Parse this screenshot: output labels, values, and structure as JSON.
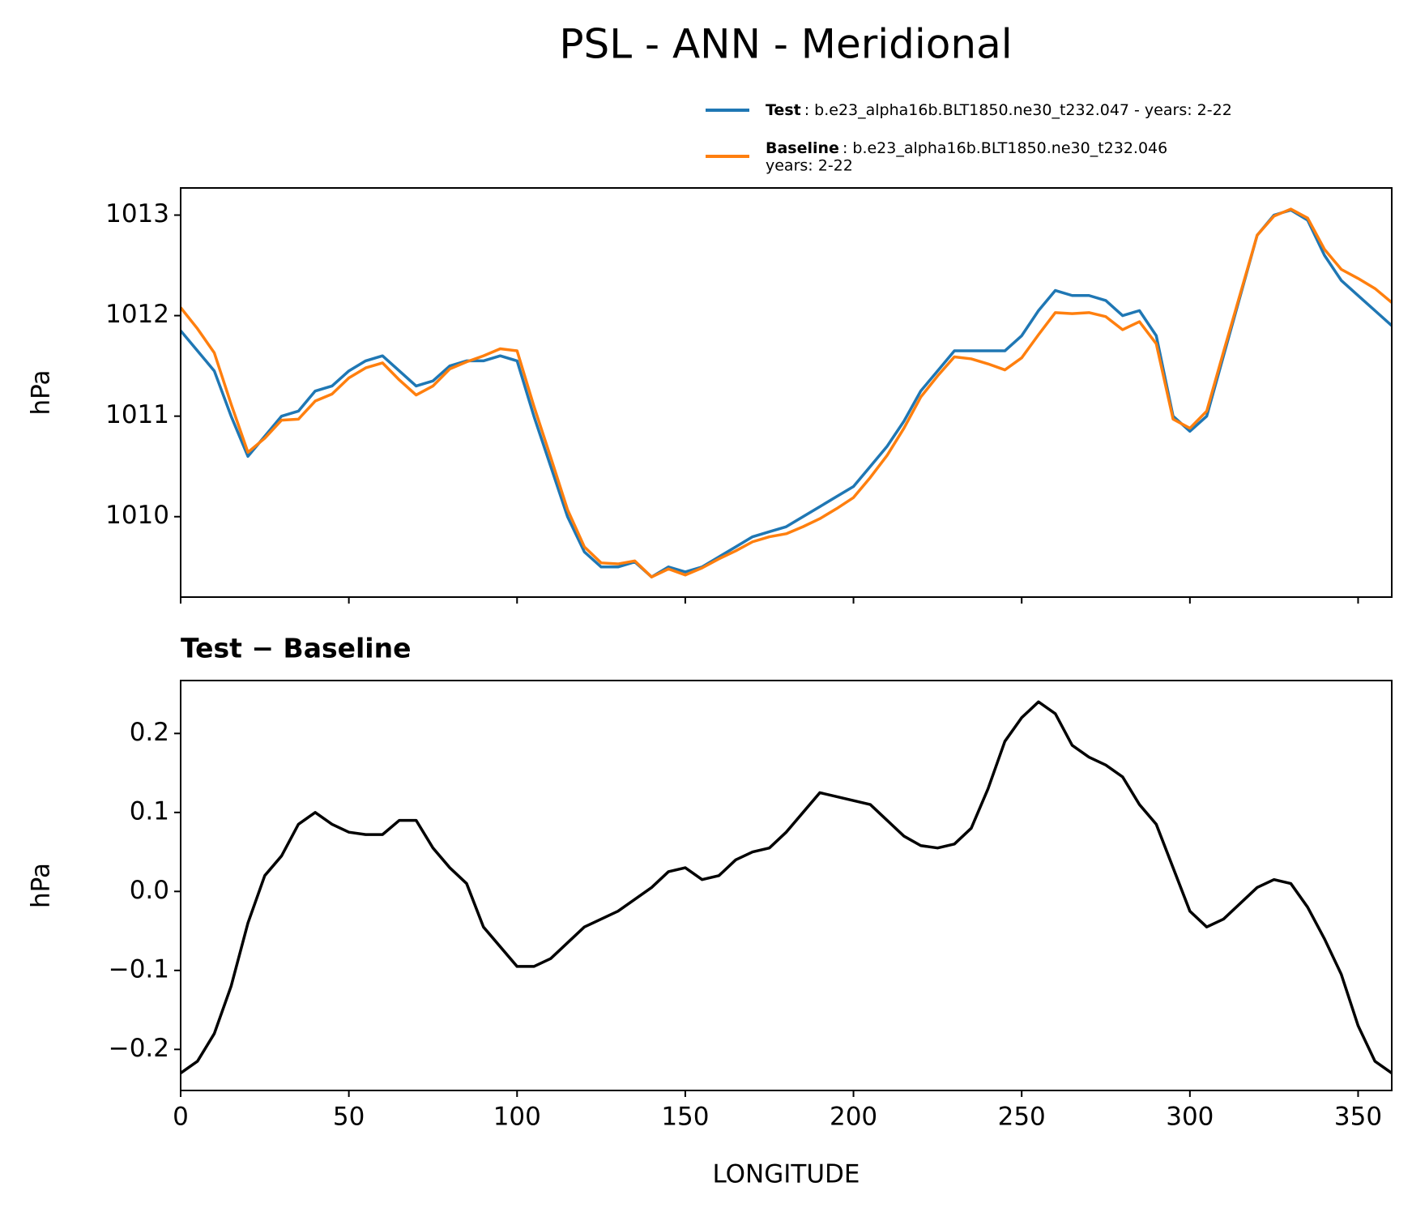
{
  "title": "PSL - ANN - Meridional",
  "chart_data": [
    {
      "type": "line",
      "ylabel": "hPa",
      "x": [
        0,
        5,
        10,
        15,
        20,
        25,
        30,
        35,
        40,
        45,
        50,
        55,
        60,
        65,
        70,
        75,
        80,
        85,
        90,
        95,
        100,
        105,
        110,
        115,
        120,
        125,
        130,
        135,
        140,
        145,
        150,
        155,
        160,
        165,
        170,
        175,
        180,
        185,
        190,
        195,
        200,
        205,
        210,
        215,
        220,
        225,
        230,
        235,
        240,
        245,
        250,
        255,
        260,
        265,
        270,
        275,
        280,
        285,
        290,
        295,
        300,
        305,
        310,
        315,
        320,
        325,
        330,
        335,
        340,
        345,
        350,
        355,
        360
      ],
      "series": [
        {
          "name": "Test",
          "description": [
            ": b.e23_alpha16b.BLT1850.ne30_t232.047 - years: 2-22"
          ],
          "color": "#1f77b4",
          "values": [
            1011.85,
            1011.65,
            1011.45,
            1011.0,
            1010.6,
            1010.8,
            1011.0,
            1011.05,
            1011.25,
            1011.3,
            1011.45,
            1011.55,
            1011.6,
            1011.45,
            1011.3,
            1011.35,
            1011.5,
            1011.55,
            1011.55,
            1011.6,
            1011.55,
            1011.0,
            1010.5,
            1010.0,
            1009.65,
            1009.5,
            1009.5,
            1009.55,
            1009.4,
            1009.5,
            1009.45,
            1009.5,
            1009.6,
            1009.7,
            1009.8,
            1009.85,
            1009.9,
            1010.0,
            1010.1,
            1010.2,
            1010.3,
            1010.5,
            1010.7,
            1010.95,
            1011.25,
            1011.45,
            1011.65,
            1011.65,
            1011.65,
            1011.65,
            1011.8,
            1012.05,
            1012.25,
            1012.2,
            1012.2,
            1012.15,
            1012.0,
            1012.05,
            1011.8,
            1011.0,
            1010.85,
            1011.0,
            1011.6,
            1012.2,
            1012.8,
            1013.0,
            1013.05,
            1012.95,
            1012.6,
            1012.35,
            1012.2,
            1012.05,
            1011.9
          ]
        },
        {
          "name": "Baseline",
          "description": [
            ": b.e23_alpha16b.BLT1850.ne30_t232.046",
            "years: 2-22"
          ],
          "color": "#ff7f0e",
          "values": [
            1012.08,
            1011.87,
            1011.63,
            1011.12,
            1010.64,
            1010.78,
            1010.96,
            1010.97,
            1011.15,
            1011.22,
            1011.38,
            1011.48,
            1011.53,
            1011.36,
            1011.21,
            1011.3,
            1011.47,
            1011.54,
            1011.6,
            1011.67,
            1011.65,
            1011.1,
            1010.59,
            1010.07,
            1009.7,
            1009.54,
            1009.53,
            1009.56,
            1009.4,
            1009.48,
            1009.42,
            1009.49,
            1009.58,
            1009.66,
            1009.75,
            1009.8,
            1009.83,
            1009.9,
            1009.98,
            1010.08,
            1010.19,
            1010.39,
            1010.61,
            1010.88,
            1011.19,
            1011.4,
            1011.59,
            1011.57,
            1011.52,
            1011.46,
            1011.58,
            1011.81,
            1012.03,
            1012.02,
            1012.03,
            1011.99,
            1011.86,
            1011.94,
            1011.72,
            1010.97,
            1010.88,
            1011.05,
            1011.64,
            1012.22,
            1012.8,
            1012.99,
            1013.06,
            1012.97,
            1012.66,
            1012.46,
            1012.37,
            1012.27,
            1012.13
          ]
        }
      ],
      "xlim": [
        0,
        360
      ],
      "xticks": [
        0,
        50,
        100,
        150,
        200,
        250,
        300,
        350
      ],
      "ylim": [
        1009.2,
        1013.27
      ],
      "yticks": [
        1010,
        1011,
        1012,
        1013
      ]
    },
    {
      "type": "line",
      "title": "Test − Baseline",
      "xlabel": "LONGITUDE",
      "ylabel": "hPa",
      "x": [
        0,
        5,
        10,
        15,
        20,
        25,
        30,
        35,
        40,
        45,
        50,
        55,
        60,
        65,
        70,
        75,
        80,
        85,
        90,
        95,
        100,
        105,
        110,
        115,
        120,
        125,
        130,
        135,
        140,
        145,
        150,
        155,
        160,
        165,
        170,
        175,
        180,
        185,
        190,
        195,
        200,
        205,
        210,
        215,
        220,
        225,
        230,
        235,
        240,
        245,
        250,
        255,
        260,
        265,
        270,
        275,
        280,
        285,
        290,
        295,
        300,
        305,
        310,
        315,
        320,
        325,
        330,
        335,
        340,
        345,
        350,
        355,
        360
      ],
      "series": [
        {
          "color": "#000000",
          "values": [
            -0.23,
            -0.215,
            -0.18,
            -0.12,
            -0.04,
            0.02,
            0.045,
            0.085,
            0.1,
            0.085,
            0.075,
            0.072,
            0.072,
            0.09,
            0.09,
            0.055,
            0.03,
            0.01,
            -0.045,
            -0.07,
            -0.095,
            -0.095,
            -0.085,
            -0.065,
            -0.045,
            -0.035,
            -0.025,
            -0.01,
            0.005,
            0.025,
            0.03,
            0.015,
            0.02,
            0.04,
            0.05,
            0.055,
            0.075,
            0.1,
            0.125,
            0.12,
            0.115,
            0.11,
            0.09,
            0.07,
            0.058,
            0.055,
            0.06,
            0.08,
            0.13,
            0.19,
            0.22,
            0.24,
            0.225,
            0.185,
            0.17,
            0.16,
            0.145,
            0.11,
            0.085,
            0.03,
            -0.025,
            -0.045,
            -0.035,
            -0.015,
            0.005,
            0.015,
            0.01,
            -0.02,
            -0.06,
            -0.105,
            -0.17,
            -0.215,
            -0.23
          ]
        }
      ],
      "xlim": [
        0,
        360
      ],
      "xticks": [
        0,
        50,
        100,
        150,
        200,
        250,
        300,
        350
      ],
      "ylim": [
        -0.252,
        0.267
      ],
      "yticks": [
        {
          "value": -0.2,
          "label": "−0.2"
        },
        {
          "value": -0.1,
          "label": "−0.1"
        },
        {
          "value": 0,
          "label": "0.0"
        },
        0.1,
        0.2
      ]
    }
  ]
}
